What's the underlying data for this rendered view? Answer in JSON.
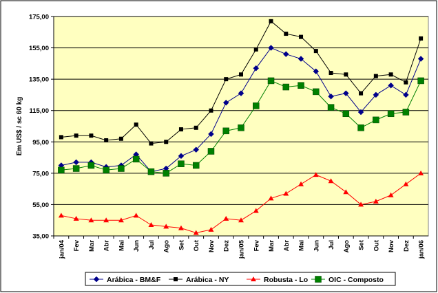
{
  "chart_data": {
    "type": "line",
    "ylabel": "Em US$ / sc 60 kg",
    "xlabel": "",
    "title": "",
    "ylim": [
      35,
      175
    ],
    "yticks": [
      "35,00",
      "55,00",
      "75,00",
      "95,00",
      "115,00",
      "135,00",
      "155,00",
      "175,00"
    ],
    "categories": [
      "jan/04",
      "Fev",
      "Mar",
      "Abr",
      "Mai",
      "Jun",
      "Jul",
      "Ago",
      "Set",
      "Out",
      "Nov",
      "Dez",
      "jan/05",
      "Fev",
      "Mar",
      "Abr",
      "Mai",
      "Jun",
      "Jul",
      "Ago",
      "Set",
      "Out",
      "Nov",
      "Dez",
      "jan/06"
    ],
    "grid": true,
    "legend_position": "bottom",
    "plot_background": "#FFFFC0",
    "series": [
      {
        "name": "Arábica - BM&F",
        "color": "#00008B",
        "marker": "diamond",
        "values": [
          80,
          82,
          82,
          79,
          80,
          87,
          76,
          78,
          86,
          90,
          100,
          120,
          126,
          142,
          155,
          151,
          148,
          140,
          124,
          126,
          114,
          125,
          131,
          125,
          148
        ]
      },
      {
        "name": "Arábica - NY",
        "color": "#000000",
        "marker": "square",
        "values": [
          98,
          99,
          99,
          96,
          97,
          106,
          94,
          95,
          103,
          104,
          115,
          135,
          138,
          154,
          172,
          164,
          162,
          153,
          139,
          138,
          126,
          137,
          138,
          133,
          161
        ]
      },
      {
        "name": "Robusta - Lo",
        "color": "#FF0000",
        "marker": "triangle",
        "values": [
          48,
          46,
          45,
          45,
          45,
          48,
          42,
          41,
          40,
          37,
          39,
          46,
          45,
          51,
          59,
          62,
          68,
          74,
          70,
          63,
          55,
          57,
          61,
          68,
          75
        ]
      },
      {
        "name": "OIC - Composto",
        "color": "#008000",
        "marker": "square-large",
        "values": [
          77,
          78,
          80,
          77,
          78,
          84,
          76,
          75,
          81,
          80,
          89,
          102,
          104,
          118,
          134,
          130,
          131,
          127,
          117,
          113,
          104,
          109,
          113,
          114,
          134
        ]
      }
    ]
  }
}
